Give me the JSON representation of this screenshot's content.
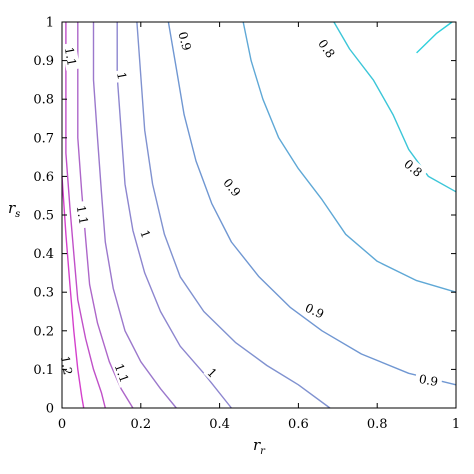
{
  "chart_data": {
    "type": "contour",
    "xlabel": "r",
    "xlabel_sub": "r",
    "ylabel": "r",
    "ylabel_sub": "s",
    "xlim": [
      0,
      1
    ],
    "ylim": [
      0,
      1
    ],
    "x_ticks": [
      "0",
      "0.2",
      "0.4",
      "0.6",
      "0.8",
      "1"
    ],
    "y_ticks": [
      "0",
      "0.1",
      "0.2",
      "0.3",
      "0.4",
      "0.5",
      "0.6",
      "0.7",
      "0.8",
      "0.9",
      "1"
    ],
    "grid": false,
    "contours": [
      {
        "level": "0.8",
        "color": "#2fd0dc",
        "points": [
          [
            0.99,
            1.0
          ],
          [
            0.95,
            0.97
          ],
          [
            0.9,
            0.92
          ]
        ]
      },
      {
        "level": "0.8",
        "color": "#3cc6d8",
        "points": [
          [
            0.69,
            1.0
          ],
          [
            0.73,
            0.93
          ],
          [
            0.79,
            0.85
          ],
          [
            0.84,
            0.76
          ],
          [
            0.88,
            0.67
          ],
          [
            0.93,
            0.6
          ],
          [
            1.0,
            0.56
          ]
        ]
      },
      {
        "level": "0.9",
        "color": "#5fa8d6",
        "points": [
          [
            0.46,
            1.0
          ],
          [
            0.48,
            0.9
          ],
          [
            0.51,
            0.8
          ],
          [
            0.55,
            0.7
          ],
          [
            0.6,
            0.62
          ],
          [
            0.66,
            0.54
          ],
          [
            0.72,
            0.45
          ],
          [
            0.8,
            0.38
          ],
          [
            0.9,
            0.33
          ],
          [
            1.0,
            0.3
          ]
        ]
      },
      {
        "level": "0.9",
        "color": "#7097d2",
        "points": [
          [
            0.27,
            1.0
          ],
          [
            0.29,
            0.88
          ],
          [
            0.31,
            0.76
          ],
          [
            0.34,
            0.64
          ],
          [
            0.38,
            0.53
          ],
          [
            0.43,
            0.43
          ],
          [
            0.5,
            0.34
          ],
          [
            0.58,
            0.26
          ],
          [
            0.66,
            0.2
          ],
          [
            0.76,
            0.14
          ],
          [
            0.88,
            0.09
          ],
          [
            1.0,
            0.06
          ]
        ]
      },
      {
        "level": "0.9",
        "color": "#8092d0",
        "points": [
          [
            0.19,
            1.0
          ],
          [
            0.2,
            0.86
          ],
          [
            0.21,
            0.72
          ],
          [
            0.23,
            0.58
          ],
          [
            0.26,
            0.45
          ],
          [
            0.3,
            0.34
          ],
          [
            0.36,
            0.25
          ],
          [
            0.44,
            0.17
          ],
          [
            0.52,
            0.11
          ],
          [
            0.6,
            0.06
          ],
          [
            0.68,
            0.0
          ]
        ]
      },
      {
        "level": "1",
        "color": "#8d86cf",
        "points": [
          [
            0.14,
            1.0
          ],
          [
            0.14,
            0.86
          ],
          [
            0.15,
            0.72
          ],
          [
            0.16,
            0.58
          ],
          [
            0.18,
            0.46
          ],
          [
            0.21,
            0.35
          ],
          [
            0.25,
            0.25
          ],
          [
            0.3,
            0.16
          ],
          [
            0.36,
            0.09
          ],
          [
            0.43,
            0.0
          ]
        ]
      },
      {
        "level": "1",
        "color": "#9b78cc",
        "points": [
          [
            0.08,
            1.0
          ],
          [
            0.08,
            0.85
          ],
          [
            0.09,
            0.7
          ],
          [
            0.1,
            0.56
          ],
          [
            0.11,
            0.43
          ],
          [
            0.13,
            0.31
          ],
          [
            0.16,
            0.2
          ],
          [
            0.2,
            0.12
          ],
          [
            0.25,
            0.05
          ],
          [
            0.29,
            0.0
          ]
        ]
      },
      {
        "level": "1.1",
        "color": "#ad66c9",
        "points": [
          [
            0.04,
            1.0
          ],
          [
            0.04,
            0.85
          ],
          [
            0.04,
            0.7
          ],
          [
            0.05,
            0.56
          ],
          [
            0.06,
            0.44
          ],
          [
            0.07,
            0.32
          ],
          [
            0.09,
            0.22
          ],
          [
            0.12,
            0.12
          ],
          [
            0.15,
            0.05
          ],
          [
            0.18,
            0.0
          ]
        ]
      },
      {
        "level": "1.1",
        "color": "#c050c8",
        "points": [
          [
            0.01,
            1.0
          ],
          [
            0.01,
            0.8
          ],
          [
            0.01,
            0.66
          ],
          [
            0.02,
            0.52
          ],
          [
            0.03,
            0.4
          ],
          [
            0.04,
            0.28
          ],
          [
            0.06,
            0.18
          ],
          [
            0.08,
            0.1
          ],
          [
            0.1,
            0.04
          ],
          [
            0.11,
            0.0
          ]
        ]
      },
      {
        "level": "1.2",
        "color": "#d440cc",
        "points": [
          [
            0.0,
            0.6
          ],
          [
            0.01,
            0.45
          ],
          [
            0.02,
            0.32
          ],
          [
            0.03,
            0.2
          ],
          [
            0.04,
            0.1
          ],
          [
            0.05,
            0.03
          ],
          [
            0.055,
            0.0
          ]
        ]
      }
    ],
    "annotations": [
      {
        "text": "1.1",
        "x": 0.02,
        "y": 0.91,
        "angle": 80
      },
      {
        "text": "1",
        "x": 0.15,
        "y": 0.86,
        "angle": 80
      },
      {
        "text": "0.9",
        "x": 0.31,
        "y": 0.95,
        "angle": 75
      },
      {
        "text": "0.8",
        "x": 0.67,
        "y": 0.93,
        "angle": 55
      },
      {
        "text": "0.8",
        "x": 0.89,
        "y": 0.62,
        "angle": 40
      },
      {
        "text": "0.9",
        "x": 0.43,
        "y": 0.57,
        "angle": 50
      },
      {
        "text": "1.1",
        "x": 0.05,
        "y": 0.5,
        "angle": 80
      },
      {
        "text": "1",
        "x": 0.21,
        "y": 0.45,
        "angle": 70
      },
      {
        "text": "0.9",
        "x": 0.64,
        "y": 0.25,
        "angle": 25
      },
      {
        "text": "0.9",
        "x": 0.93,
        "y": 0.07,
        "angle": 10
      },
      {
        "text": "1",
        "x": 0.38,
        "y": 0.09,
        "angle": 45
      },
      {
        "text": "1.1",
        "x": 0.15,
        "y": 0.09,
        "angle": 70
      },
      {
        "text": "1.2",
        "x": 0.01,
        "y": 0.11,
        "angle": 80
      }
    ]
  }
}
